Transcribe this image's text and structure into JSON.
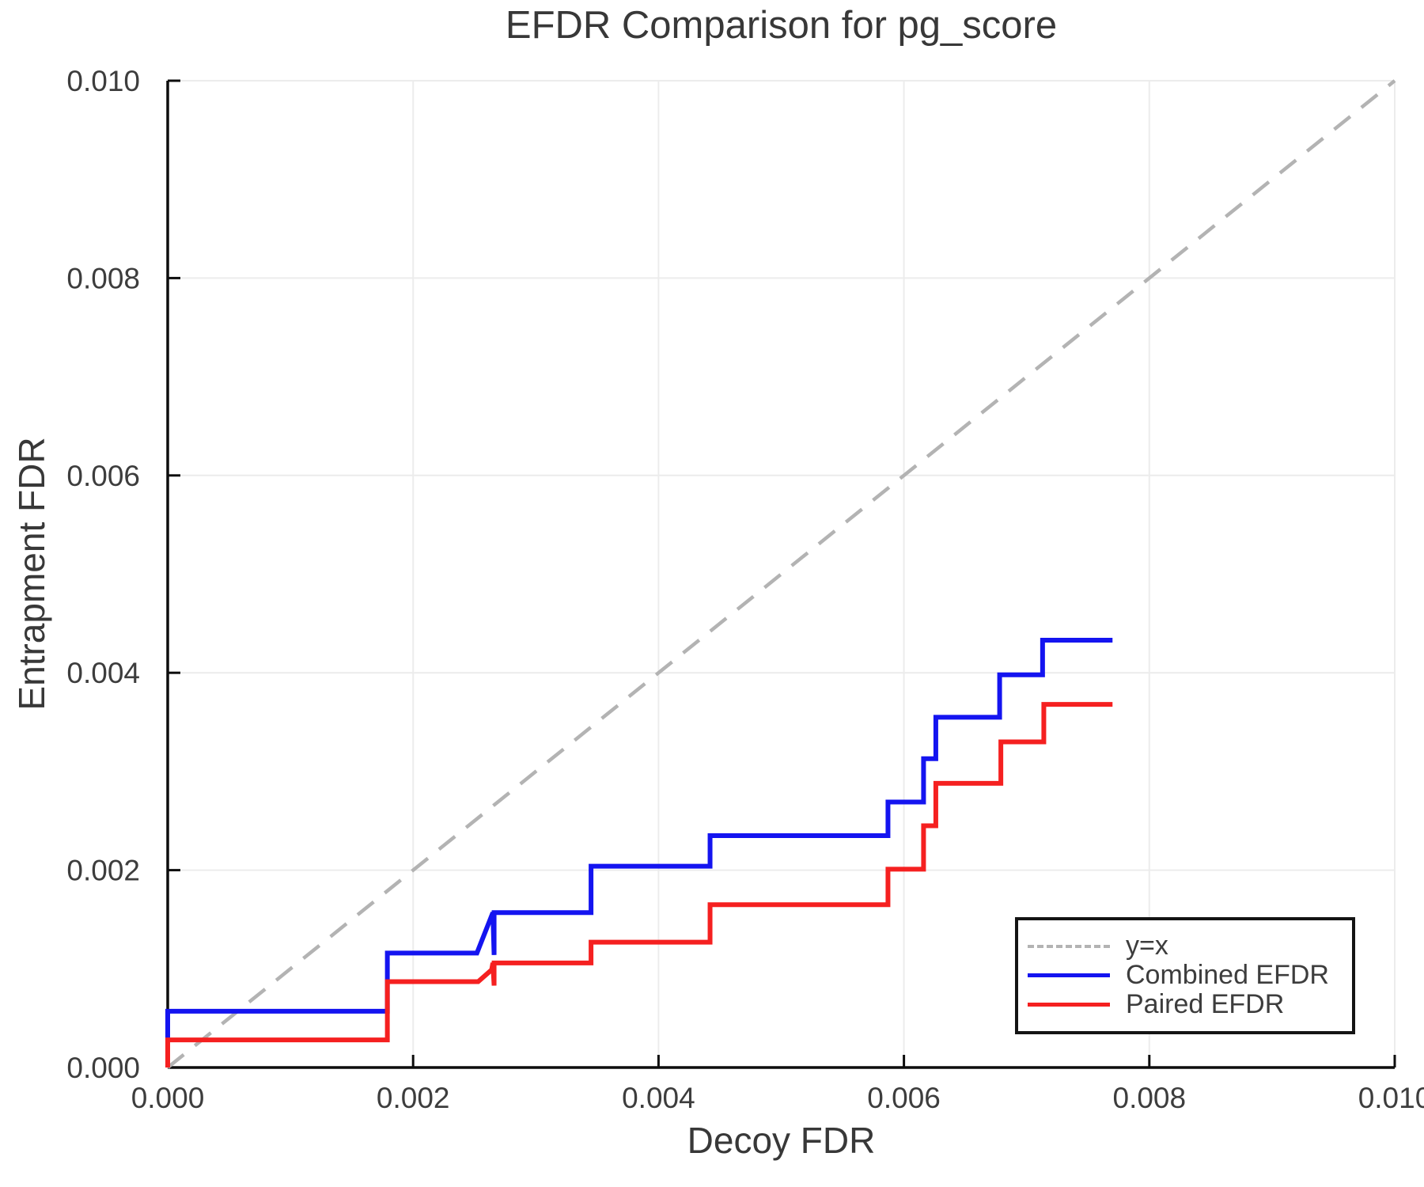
{
  "figure": {
    "background": "#ffffff"
  },
  "chart_data": {
    "type": "line",
    "title": "EFDR Comparison for pg_score",
    "xlabel": "Decoy FDR",
    "ylabel": "Entrapment FDR",
    "xlim": [
      0,
      0.01
    ],
    "ylim": [
      0,
      0.01
    ],
    "x_tick_values": [
      0,
      0.002,
      0.004,
      0.006,
      0.008,
      0.01
    ],
    "x_tick_labels": [
      "0.000",
      "0.002",
      "0.004",
      "0.006",
      "0.008",
      "0.010"
    ],
    "y_tick_values": [
      0,
      0.002,
      0.004,
      0.006,
      0.008,
      0.01
    ],
    "y_tick_labels": [
      "0.000",
      "0.002",
      "0.004",
      "0.006",
      "0.008",
      "0.010"
    ],
    "grid": true,
    "grid_color": "#ececec",
    "spine_color": "#0d0d0d",
    "tick_label_color": "#3d3d3d",
    "legend": {
      "position": "lower right",
      "entries": [
        "y=x",
        "Combined EFDR",
        "Paired EFDR"
      ]
    },
    "series": [
      {
        "name": "y=x",
        "color": "#b3b3b3",
        "style": "dashed",
        "points": [
          [
            0,
            0
          ],
          [
            0.01,
            0.01
          ]
        ]
      },
      {
        "name": "Combined EFDR",
        "color": "#1414f0",
        "style": "solid",
        "points": [
          [
            0.0,
            0.0
          ],
          [
            0.0,
            0.00057
          ],
          [
            0.00179,
            0.00057
          ],
          [
            0.00179,
            0.00116
          ],
          [
            0.00252,
            0.00116
          ],
          [
            0.00265,
            0.00157
          ],
          [
            0.00266,
            0.00114
          ],
          [
            0.00266,
            0.00157
          ],
          [
            0.00345,
            0.00157
          ],
          [
            0.00345,
            0.00204
          ],
          [
            0.00442,
            0.00204
          ],
          [
            0.00442,
            0.00235
          ],
          [
            0.00587,
            0.00235
          ],
          [
            0.00587,
            0.00269
          ],
          [
            0.00616,
            0.00269
          ],
          [
            0.00616,
            0.00313
          ],
          [
            0.00626,
            0.00313
          ],
          [
            0.00626,
            0.00355
          ],
          [
            0.00678,
            0.00355
          ],
          [
            0.00678,
            0.00398
          ],
          [
            0.00713,
            0.00398
          ],
          [
            0.00713,
            0.00433
          ],
          [
            0.0077,
            0.00433
          ]
        ]
      },
      {
        "name": "Paired EFDR",
        "color": "#f52020",
        "style": "solid",
        "points": [
          [
            0.0,
            0.0
          ],
          [
            0.0,
            0.00028
          ],
          [
            0.00179,
            0.00028
          ],
          [
            0.00179,
            0.00087
          ],
          [
            0.00253,
            0.00087
          ],
          [
            0.00264,
            0.00099
          ],
          [
            0.00265,
            0.00106
          ],
          [
            0.00266,
            0.00083
          ],
          [
            0.00266,
            0.00106
          ],
          [
            0.00345,
            0.00106
          ],
          [
            0.00345,
            0.00127
          ],
          [
            0.00442,
            0.00127
          ],
          [
            0.00442,
            0.00165
          ],
          [
            0.00587,
            0.00165
          ],
          [
            0.00587,
            0.00201
          ],
          [
            0.00616,
            0.00201
          ],
          [
            0.00616,
            0.00245
          ],
          [
            0.00626,
            0.00245
          ],
          [
            0.00626,
            0.00288
          ],
          [
            0.00679,
            0.00288
          ],
          [
            0.00679,
            0.0033
          ],
          [
            0.00714,
            0.0033
          ],
          [
            0.00714,
            0.00368
          ],
          [
            0.0077,
            0.00368
          ]
        ]
      }
    ]
  }
}
